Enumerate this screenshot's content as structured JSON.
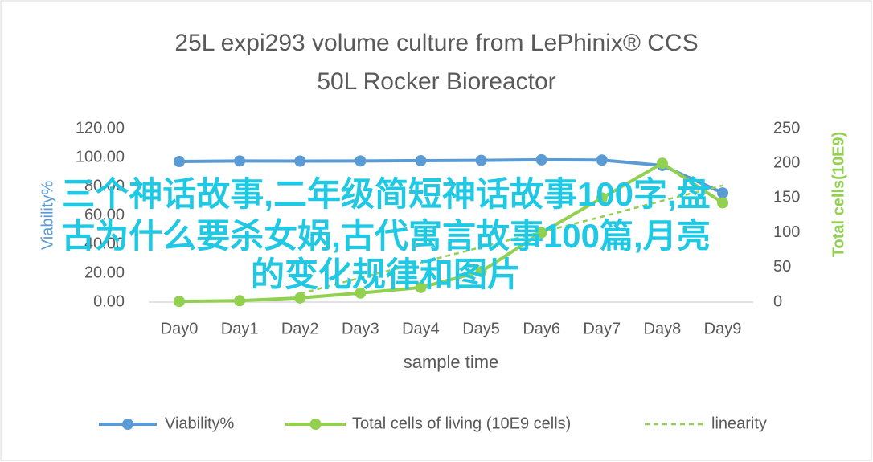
{
  "chart_data": {
    "type": "line",
    "title": "25L  expi293 volume culture  from LePhinix® CCS",
    "subtitle": "50L Rocker Bioreactor",
    "x_label": "sample  time",
    "y_label": "Viability%",
    "y2_label": "Total cells(10E9)",
    "categories": [
      "Day0",
      "Day1",
      "Day2",
      "Day3",
      "Day4",
      "Day5",
      "Day6",
      "Day7",
      "Day8",
      "Day9"
    ],
    "ylim": [
      0,
      120
    ],
    "yticks": [
      {
        "value": 0,
        "label": "0.00"
      },
      {
        "value": 20,
        "label": "20.00"
      },
      {
        "value": 40,
        "label": "40.00"
      },
      {
        "value": 60,
        "label": "60.00"
      },
      {
        "value": 80,
        "label": "80.00"
      },
      {
        "value": 100,
        "label": "100.00"
      },
      {
        "value": 120,
        "label": "120.00"
      }
    ],
    "y2lim": [
      0,
      250
    ],
    "y2ticks": [
      0,
      50,
      100,
      150,
      200,
      250
    ],
    "series": [
      {
        "name": "Viability%",
        "color": "#5b9bd5",
        "values": [
          97.2,
          97.6,
          97.5,
          97.6,
          97.8,
          98,
          98.4,
          98.2,
          94.5,
          75.5
        ]
      },
      {
        "name": "Total cells of living (10E9 cells)",
        "color": "#92d050",
        "axis": "y2",
        "values": [
          1,
          2,
          6,
          13,
          21,
          44,
          100,
          150,
          200,
          143
        ]
      },
      {
        "name": "linearity",
        "color": "#92d050",
        "axis": "y2",
        "dashed": true,
        "values": [
          null,
          null,
          12,
          35,
          57,
          79,
          101,
          123,
          146,
          168
        ]
      }
    ],
    "overlay_text": [
      "三个神话故事,二年级简短神话故事100字,盘",
      "古为什么要杀女娲,古代寓言故事100篇,月亮",
      "的变化规律和图片"
    ]
  }
}
